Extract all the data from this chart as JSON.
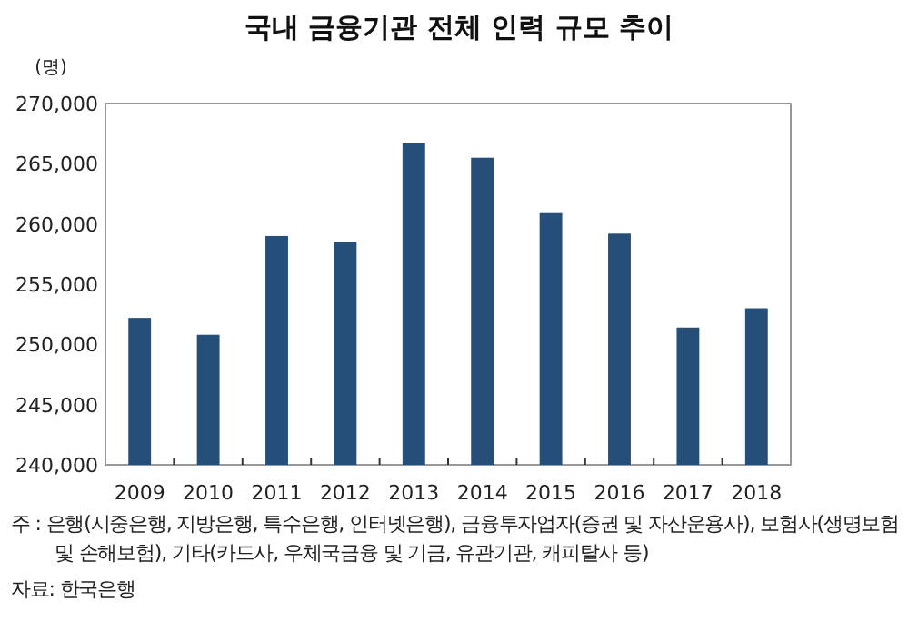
{
  "chart_data": {
    "type": "bar",
    "title": "국내 금융기관 전체 인력 규모 추이",
    "ylabel": "(명)",
    "categories": [
      "2009",
      "2010",
      "2011",
      "2012",
      "2013",
      "2014",
      "2015",
      "2016",
      "2017",
      "2018"
    ],
    "values": [
      252200,
      250800,
      259000,
      258500,
      266700,
      265500,
      260900,
      259200,
      251400,
      253000
    ],
    "color": "#254e79",
    "ylim": [
      240000,
      270000
    ],
    "yticks": [
      {
        "value": 240000,
        "label": "240,000"
      },
      {
        "value": 245000,
        "label": "245,000"
      },
      {
        "value": 250000,
        "label": "250,000"
      },
      {
        "value": 255000,
        "label": "255,000"
      },
      {
        "value": 260000,
        "label": "260,000"
      },
      {
        "value": 265000,
        "label": "265,000"
      },
      {
        "value": 270000,
        "label": "270,000"
      }
    ],
    "annotations": [
      "주 : 은행(시중은행, 지방은행, 특수은행, 인터넷은행), 금융투자업자(증권 및 자산운용사), 보험사(생명보험 및 손해보험), 기타(카드사, 우체국금융 및 기금, 유관기관, 캐피탈사 등)",
      "자료: 한국은행"
    ]
  }
}
